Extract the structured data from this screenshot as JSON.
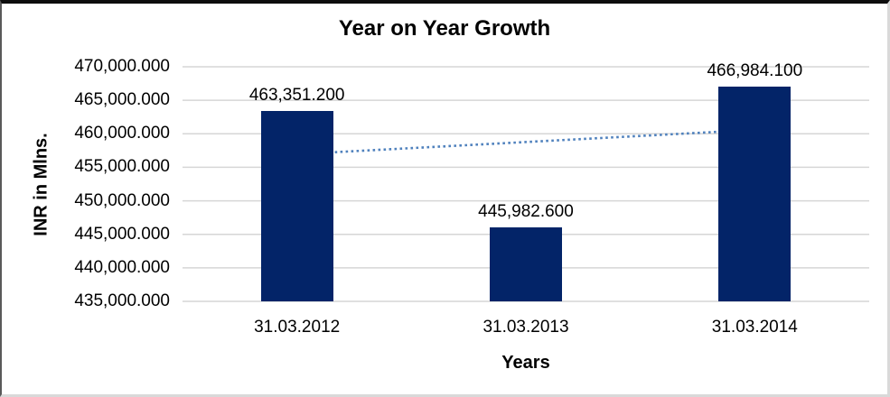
{
  "chart_data": {
    "type": "bar",
    "title": "Year on Year Growth",
    "xlabel": "Years",
    "ylabel": "INR in Mlns.",
    "categories": [
      "31.03.2012",
      "31.03.2013",
      "31.03.2014"
    ],
    "values": [
      463351.2,
      445982.6,
      466984.1
    ],
    "data_labels": [
      "463,351.200",
      "445,982.600",
      "466,984.100"
    ],
    "ylim": [
      435000,
      470000
    ],
    "ytick_step": 5000,
    "ytick_labels": [
      "470,000.000",
      "465,000.000",
      "460,000.000",
      "455,000.000",
      "450,000.000",
      "445,000.000",
      "440,000.000",
      "435,000.000"
    ],
    "grid": true,
    "legend": "none",
    "trendline": {
      "type": "linear",
      "style": "dotted"
    },
    "colors": {
      "bar": "#032468",
      "trendline": "#4f81bd",
      "gridline": "#d6d6d6",
      "text": "#000000"
    }
  }
}
